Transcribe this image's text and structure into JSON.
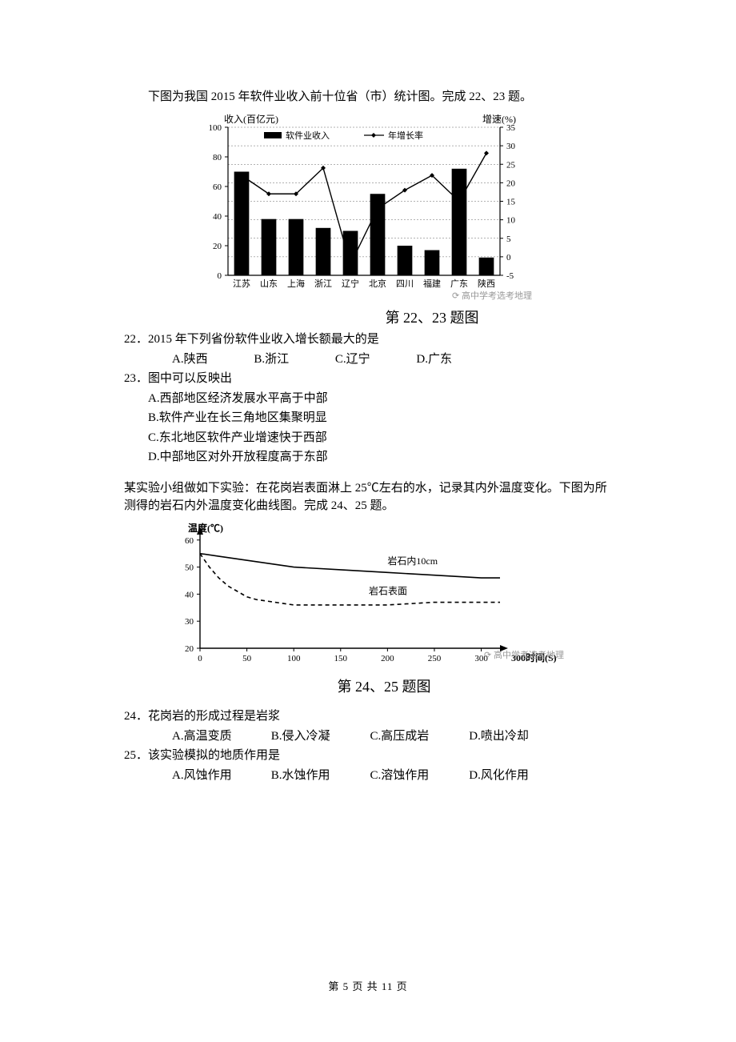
{
  "meta": {
    "page_current": "5",
    "page_total": "11"
  },
  "section1": {
    "intro": "下图为我国 2015 年软件业收入前十位省（市）统计图。完成 22、23 题。",
    "chart": {
      "type": "bar+line",
      "y_left_label": "收入(百亿元)",
      "y_right_label": "增速(%)",
      "legend_bar": "软件业收入",
      "legend_line": "年增长率",
      "categories": [
        "江苏",
        "山东",
        "上海",
        "浙江",
        "辽宁",
        "北京",
        "四川",
        "福建",
        "广东",
        "陕西"
      ],
      "bar_values": [
        70,
        38,
        38,
        32,
        30,
        55,
        20,
        17,
        72,
        12
      ],
      "line_values": [
        22,
        17,
        17,
        24,
        -2,
        13,
        18,
        22,
        15,
        28
      ],
      "y_left_ticks": [
        0,
        20,
        40,
        60,
        80,
        100
      ],
      "y_left_lim": [
        0,
        100
      ],
      "y_right_ticks": [
        -5,
        0,
        5,
        10,
        15,
        20,
        25,
        30,
        35
      ],
      "y_right_lim": [
        -5,
        35
      ],
      "bar_color": "#000000",
      "line_color": "#000000",
      "axis_color": "#000000",
      "grid_color": "#666666",
      "background_color": "#ffffff",
      "label_fontsize": 12,
      "tick_fontsize": 11,
      "bar_width": 0.55,
      "watermark": "高中学考选考地理"
    },
    "chart_caption": "第 22、23 题图",
    "q22": {
      "stem": "22．2015 年下列省份软件业收入增长额最大的是",
      "a": "A.陕西",
      "b": "B.浙江",
      "c": "C.辽宁",
      "d": "D.广东"
    },
    "q23": {
      "stem": "23．图中可以反映出",
      "a": "A.西部地区经济发展水平高于中部",
      "b": "B.软件产业在长三角地区集聚明显",
      "c": "C.东北地区软件产业增速快于西部",
      "d": "D.中部地区对外开放程度高于东部"
    }
  },
  "section2": {
    "intro": "某实验小组做如下实验：在花岗岩表面淋上 25℃左右的水，记录其内外温度变化。下图为所测得的岩石内外温度变化曲线图。完成 24、25 题。",
    "chart": {
      "type": "line",
      "y_label": "温度(℃)",
      "x_label": "时间(S)",
      "y_ticks": [
        20,
        30,
        40,
        50,
        60
      ],
      "y_lim": [
        20,
        62
      ],
      "x_ticks": [
        0,
        50,
        100,
        150,
        200,
        250,
        300
      ],
      "x_lim": [
        0,
        320
      ],
      "series": [
        {
          "label": "岩石内10cm",
          "label_x": 200,
          "label_y": 51,
          "style": "solid",
          "points": [
            [
              0,
              55
            ],
            [
              20,
              54
            ],
            [
              40,
              53
            ],
            [
              60,
              52
            ],
            [
              80,
              51
            ],
            [
              100,
              50
            ],
            [
              150,
              49
            ],
            [
              200,
              48
            ],
            [
              250,
              47
            ],
            [
              300,
              46
            ],
            [
              320,
              46
            ]
          ]
        },
        {
          "label": "岩石表面",
          "label_x": 180,
          "label_y": 40,
          "style": "dashed",
          "points": [
            [
              0,
              55
            ],
            [
              10,
              50
            ],
            [
              20,
              46
            ],
            [
              30,
              43
            ],
            [
              40,
              41
            ],
            [
              50,
              39
            ],
            [
              60,
              38
            ],
            [
              80,
              37
            ],
            [
              100,
              36
            ],
            [
              150,
              36
            ],
            [
              200,
              36
            ],
            [
              250,
              37
            ],
            [
              300,
              37
            ],
            [
              320,
              37
            ]
          ]
        }
      ],
      "line_color": "#000000",
      "axis_color": "#000000",
      "background_color": "#ffffff",
      "label_fontsize": 12,
      "tick_fontsize": 11,
      "line_width": 1.6,
      "watermark": "高中学考选考地理"
    },
    "chart_caption": "第 24、25 题图",
    "q24": {
      "stem": "24．花岗岩的形成过程是岩浆",
      "a": "A.高温变质",
      "b": "B.侵入冷凝",
      "c": "C.高压成岩",
      "d": "D.喷出冷却"
    },
    "q25": {
      "stem": "25．该实验模拟的地质作用是",
      "a": "A.风蚀作用",
      "b": "B.水蚀作用",
      "c": "C.溶蚀作用",
      "d": "D.风化作用"
    }
  },
  "footer": "第 5 页 共 11 页"
}
